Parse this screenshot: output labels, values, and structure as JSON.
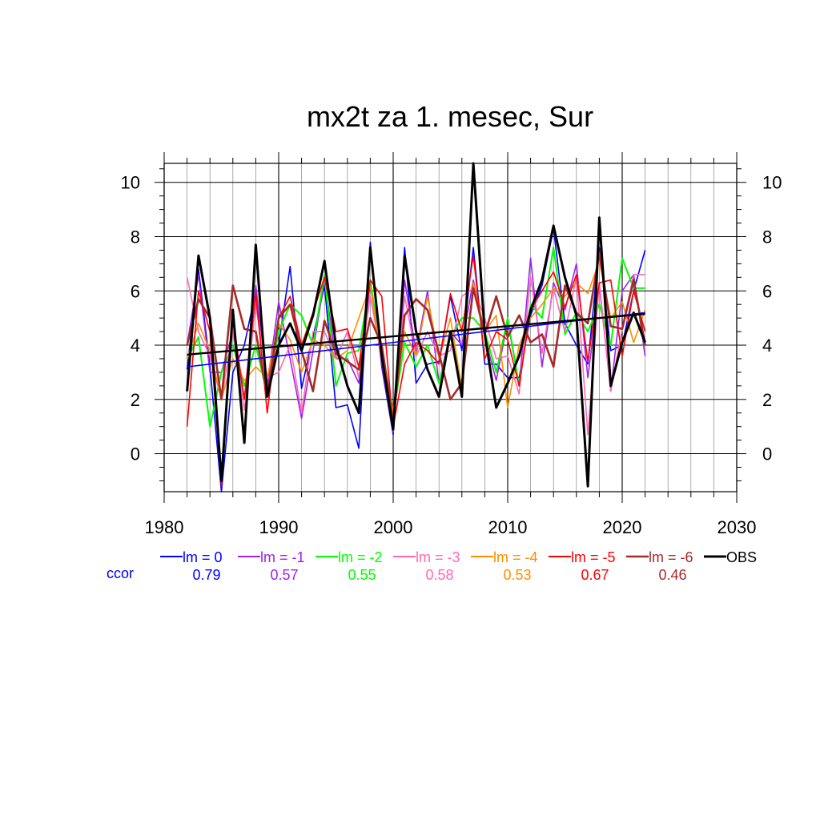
{
  "chart_data": {
    "type": "line",
    "title": "mx2t za 1. mesec, Sur",
    "xlabel": "",
    "ylabel": "",
    "xlim": [
      1980,
      2030
    ],
    "ylim": [
      -1.4,
      10.7
    ],
    "x_ticks": [
      1980,
      1990,
      2000,
      2010,
      2020,
      2030
    ],
    "y_ticks": [
      0,
      2,
      4,
      6,
      8,
      10
    ],
    "grid": true,
    "legend_position": "bottom",
    "ccor_label": "ccor",
    "x": [
      1982,
      1983,
      1984,
      1985,
      1986,
      1987,
      1988,
      1989,
      1990,
      1991,
      1992,
      1993,
      1994,
      1995,
      1996,
      1997,
      1998,
      1999,
      2000,
      2001,
      2002,
      2003,
      2004,
      2005,
      2006,
      2007,
      2008,
      2009,
      2010,
      2011,
      2012,
      2013,
      2014,
      2015,
      2016,
      2017,
      2018,
      2019,
      2020,
      2021,
      2022
    ],
    "series": [
      {
        "name": "lm = 0",
        "ccor": "0.79",
        "color": "#0000ff",
        "width": 1.6,
        "values": [
          3.1,
          6.8,
          3.2,
          -1.4,
          3.0,
          4.0,
          6.0,
          2.5,
          4.0,
          6.9,
          2.4,
          4.3,
          6.2,
          1.7,
          1.8,
          0.2,
          7.8,
          3.2,
          0.7,
          7.6,
          2.6,
          3.3,
          3.4,
          5.8,
          3.8,
          7.6,
          3.3,
          3.3,
          2.8,
          2.8,
          5.1,
          6.2,
          8.3,
          4.8,
          4.0,
          3.3,
          7.6,
          3.8,
          4.0,
          6.0,
          7.5
        ]
      },
      {
        "name": "lm = -1",
        "ccor": "0.57",
        "color": "#a020f0",
        "width": 1.6,
        "values": [
          4.0,
          6.6,
          3.0,
          3.0,
          4.5,
          2.0,
          6.2,
          2.5,
          5.6,
          3.5,
          1.3,
          3.8,
          6.4,
          3.5,
          3.5,
          2.6,
          6.3,
          3.3,
          0.8,
          6.4,
          3.7,
          6.0,
          2.6,
          4.5,
          4.0,
          6.4,
          4.3,
          2.7,
          4.9,
          2.5,
          7.2,
          3.2,
          6.3,
          5.3,
          7.0,
          2.8,
          6.2,
          2.3,
          6.0,
          6.6,
          3.6
        ]
      },
      {
        "name": "lm = -2",
        "ccor": "0.55",
        "color": "#00ff00",
        "width": 2.0,
        "values": [
          3.5,
          4.3,
          1.0,
          3.0,
          4.0,
          2.5,
          4.0,
          2.2,
          4.5,
          5.5,
          5.1,
          4.0,
          6.6,
          2.5,
          3.7,
          3.8,
          6.4,
          3.6,
          1.4,
          4.1,
          3.2,
          4.0,
          2.6,
          4.3,
          5.0,
          5.0,
          4.5,
          3.0,
          5.0,
          2.5,
          5.5,
          5.0,
          7.6,
          4.4,
          5.2,
          4.5,
          5.5,
          4.0,
          7.2,
          6.1,
          6.1
        ]
      },
      {
        "name": "lm = -3",
        "ccor": "0.58",
        "color": "#ff69b4",
        "width": 1.6,
        "values": [
          6.5,
          4.5,
          3.6,
          2.0,
          4.5,
          1.6,
          5.5,
          2.8,
          3.0,
          4.0,
          1.5,
          4.5,
          4.5,
          3.5,
          4.5,
          2.8,
          5.8,
          3.5,
          0.9,
          5.8,
          3.6,
          4.5,
          3.6,
          3.8,
          5.8,
          6.1,
          5.0,
          3.5,
          3.6,
          2.2,
          6.5,
          3.7,
          6.1,
          4.5,
          6.5,
          0.7,
          6.3,
          2.3,
          4.6,
          6.6,
          6.6
        ]
      },
      {
        "name": "lm = -4",
        "ccor": "0.53",
        "color": "#ff8c00",
        "width": 1.6,
        "values": [
          3.5,
          4.8,
          3.8,
          2.0,
          3.5,
          2.7,
          3.2,
          2.8,
          4.8,
          4.2,
          3.0,
          4.2,
          4.0,
          3.5,
          3.8,
          5.0,
          6.2,
          3.5,
          1.6,
          4.5,
          3.6,
          5.8,
          3.5,
          5.0,
          2.4,
          6.3,
          4.5,
          5.1,
          1.7,
          4.0,
          5.0,
          5.5,
          6.1,
          5.8,
          6.3,
          5.9,
          7.1,
          5.0,
          5.6,
          4.1,
          5.3
        ]
      },
      {
        "name": "lm = -5",
        "ccor": "0.67",
        "color": "#ff0000",
        "width": 1.6,
        "values": [
          1.0,
          6.0,
          4.5,
          -1.2,
          5.0,
          2.0,
          5.9,
          1.5,
          5.0,
          5.8,
          4.0,
          5.2,
          6.5,
          4.5,
          4.6,
          3.2,
          6.4,
          5.8,
          1.0,
          3.3,
          4.1,
          3.8,
          3.3,
          5.9,
          4.5,
          7.3,
          3.5,
          4.5,
          4.2,
          2.5,
          5.3,
          6.0,
          6.7,
          5.4,
          6.6,
          3.4,
          6.3,
          6.4,
          3.6,
          6.0,
          4.5
        ]
      },
      {
        "name": "lm = -6",
        "ccor": "0.46",
        "color": "#a52a2a",
        "width": 2.6,
        "values": [
          4.0,
          5.7,
          5.0,
          2.0,
          6.2,
          4.6,
          4.5,
          2.1,
          5.0,
          5.5,
          3.8,
          2.3,
          4.9,
          3.7,
          3.4,
          3.1,
          5.0,
          4.0,
          1.2,
          5.1,
          5.7,
          5.3,
          3.7,
          2.0,
          2.6,
          6.1,
          4.4,
          5.8,
          4.3,
          5.1,
          4.1,
          4.4,
          3.2,
          6.2,
          5.2,
          4.8,
          7.4,
          4.7,
          4.6,
          6.4,
          4.0
        ]
      },
      {
        "name": "OBS",
        "ccor": "",
        "color": "#000000",
        "width": 3.0,
        "values": [
          2.3,
          7.3,
          5.0,
          -1.0,
          5.3,
          0.4,
          7.7,
          2.1,
          4.0,
          4.8,
          3.8,
          5.1,
          7.1,
          4.0,
          2.5,
          1.5,
          7.6,
          3.6,
          0.9,
          7.3,
          4.5,
          3.1,
          2.1,
          4.5,
          2.1,
          10.7,
          4.4,
          1.7,
          2.6,
          3.6,
          5.3,
          6.4,
          8.4,
          6.5,
          5.1,
          -1.2,
          8.7,
          2.5,
          4.1,
          5.2,
          4.1
        ]
      }
    ],
    "trend_lines": [
      {
        "name": "lm = 0 trend",
        "color": "#0000ff",
        "width": 1.6,
        "x": [
          1982,
          2022
        ],
        "values": [
          3.2,
          5.2
        ]
      },
      {
        "name": "OBS trend",
        "color": "#000000",
        "width": 2.4,
        "x": [
          1982,
          2022
        ],
        "values": [
          3.65,
          5.15
        ]
      }
    ]
  }
}
